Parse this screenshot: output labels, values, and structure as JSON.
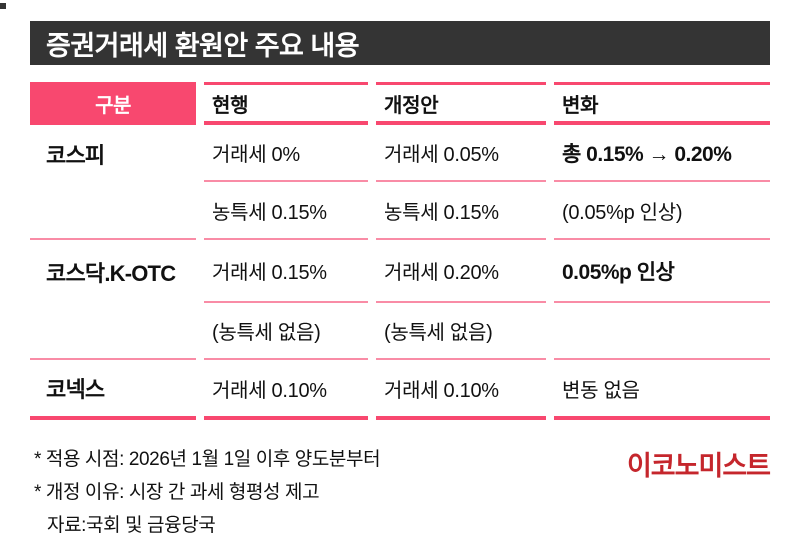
{
  "title": "증권거래세 환원안 주요 내용",
  "table": {
    "headers": {
      "category": "구분",
      "current": "현행",
      "revised": "개정안",
      "change": "변화"
    },
    "rows": [
      {
        "label": "코스피",
        "current": "거래세 0%",
        "revised": "거래세 0.05%",
        "change": "총 0.15% → 0.20%"
      },
      {
        "label": "",
        "current": "농특세 0.15%",
        "revised": "농특세 0.15%",
        "change": "(0.05%p 인상)"
      },
      {
        "label": "코스닥.K-OTC",
        "current": "거래세 0.15%",
        "revised": "거래세 0.20%",
        "change": "0.05%p 인상"
      },
      {
        "label": "",
        "current": "(농특세 없음)",
        "revised": "(농특세 없음)",
        "change": ""
      },
      {
        "label": "코넥스",
        "current": "거래세 0.10%",
        "revised": "거래세 0.10%",
        "change": "변동 없음"
      }
    ]
  },
  "footnotes": {
    "line1": "* 적용 시점: 2026년 1월 1일 이후 양도분부터",
    "line2": "* 개정 이유: 시장 간 과세 형평성 제고",
    "line3": "자료:국회 및 금융당국"
  },
  "logo_text": "이코노미스트",
  "colors": {
    "accent_pink": "#F8486F",
    "divider_pink": "#F98CA6",
    "title_bar_bg": "#343434",
    "logo_red": "#C5262C"
  },
  "chart_data": {
    "type": "table",
    "title": "증권거래세 환원안 주요 내용",
    "columns": [
      "구분",
      "현행",
      "개정안",
      "변화"
    ],
    "rows": [
      [
        "코스피",
        "거래세 0%",
        "거래세 0.05%",
        "총 0.15% → 0.20%"
      ],
      [
        "코스피",
        "농특세 0.15%",
        "농특세 0.15%",
        "(0.05%p 인상)"
      ],
      [
        "코스닥.K-OTC",
        "거래세 0.15%",
        "거래세 0.20%",
        "0.05%p 인상"
      ],
      [
        "코스닥.K-OTC",
        "(농특세 없음)",
        "(농특세 없음)",
        ""
      ],
      [
        "코넥스",
        "거래세 0.10%",
        "거래세 0.10%",
        "변동 없음"
      ]
    ],
    "notes": [
      "* 적용 시점: 2026년 1월 1일 이후 양도분부터",
      "* 개정 이유: 시장 간 과세 형평성 제고"
    ],
    "source": "자료:국회 및 금융당국",
    "publisher": "이코노미스트"
  }
}
